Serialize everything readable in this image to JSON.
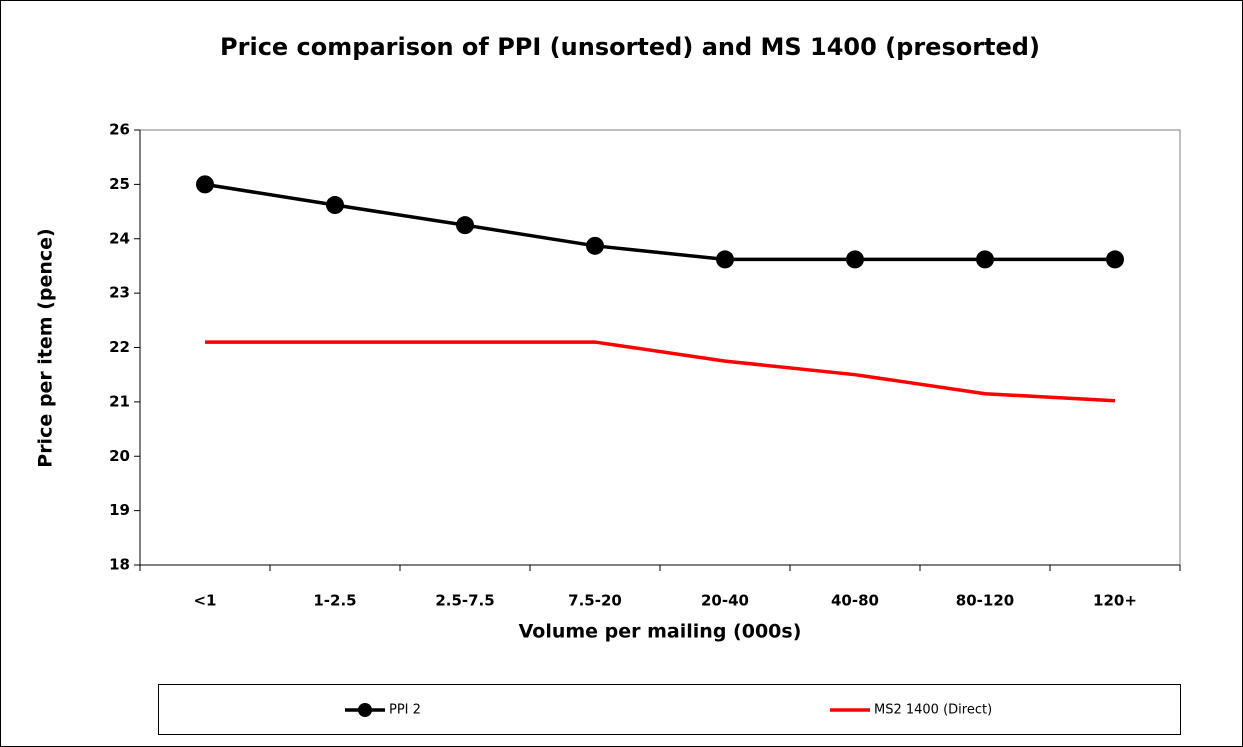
{
  "chart_data": {
    "type": "line",
    "title": "Price comparison of PPI (unsorted) and MS 1400 (presorted)",
    "x_label": "Volume per mailing (000s)",
    "y_label": "Price per item  (pence)",
    "categories": [
      "<1",
      "1-2.5",
      "2.5-7.5",
      "7.5-20",
      "20-40",
      "40-80",
      "80-120",
      "120+"
    ],
    "series": [
      {
        "name": "PPI 2",
        "color": "#000000",
        "marker": "circle",
        "values": [
          25,
          24.62,
          24.25,
          23.87,
          23.62,
          23.62,
          23.62,
          23.62
        ]
      },
      {
        "name": "MS2 1400 (Direct)",
        "color": "#ff0000",
        "marker": "none",
        "values": [
          22.1,
          22.1,
          22.1,
          22.1,
          21.75,
          21.5,
          21.15,
          21.02
        ]
      }
    ],
    "ylim": [
      18,
      26
    ],
    "yticks": [
      18,
      19,
      20,
      21,
      22,
      23,
      24,
      25,
      26
    ],
    "grid": false,
    "legend": "bottom"
  }
}
